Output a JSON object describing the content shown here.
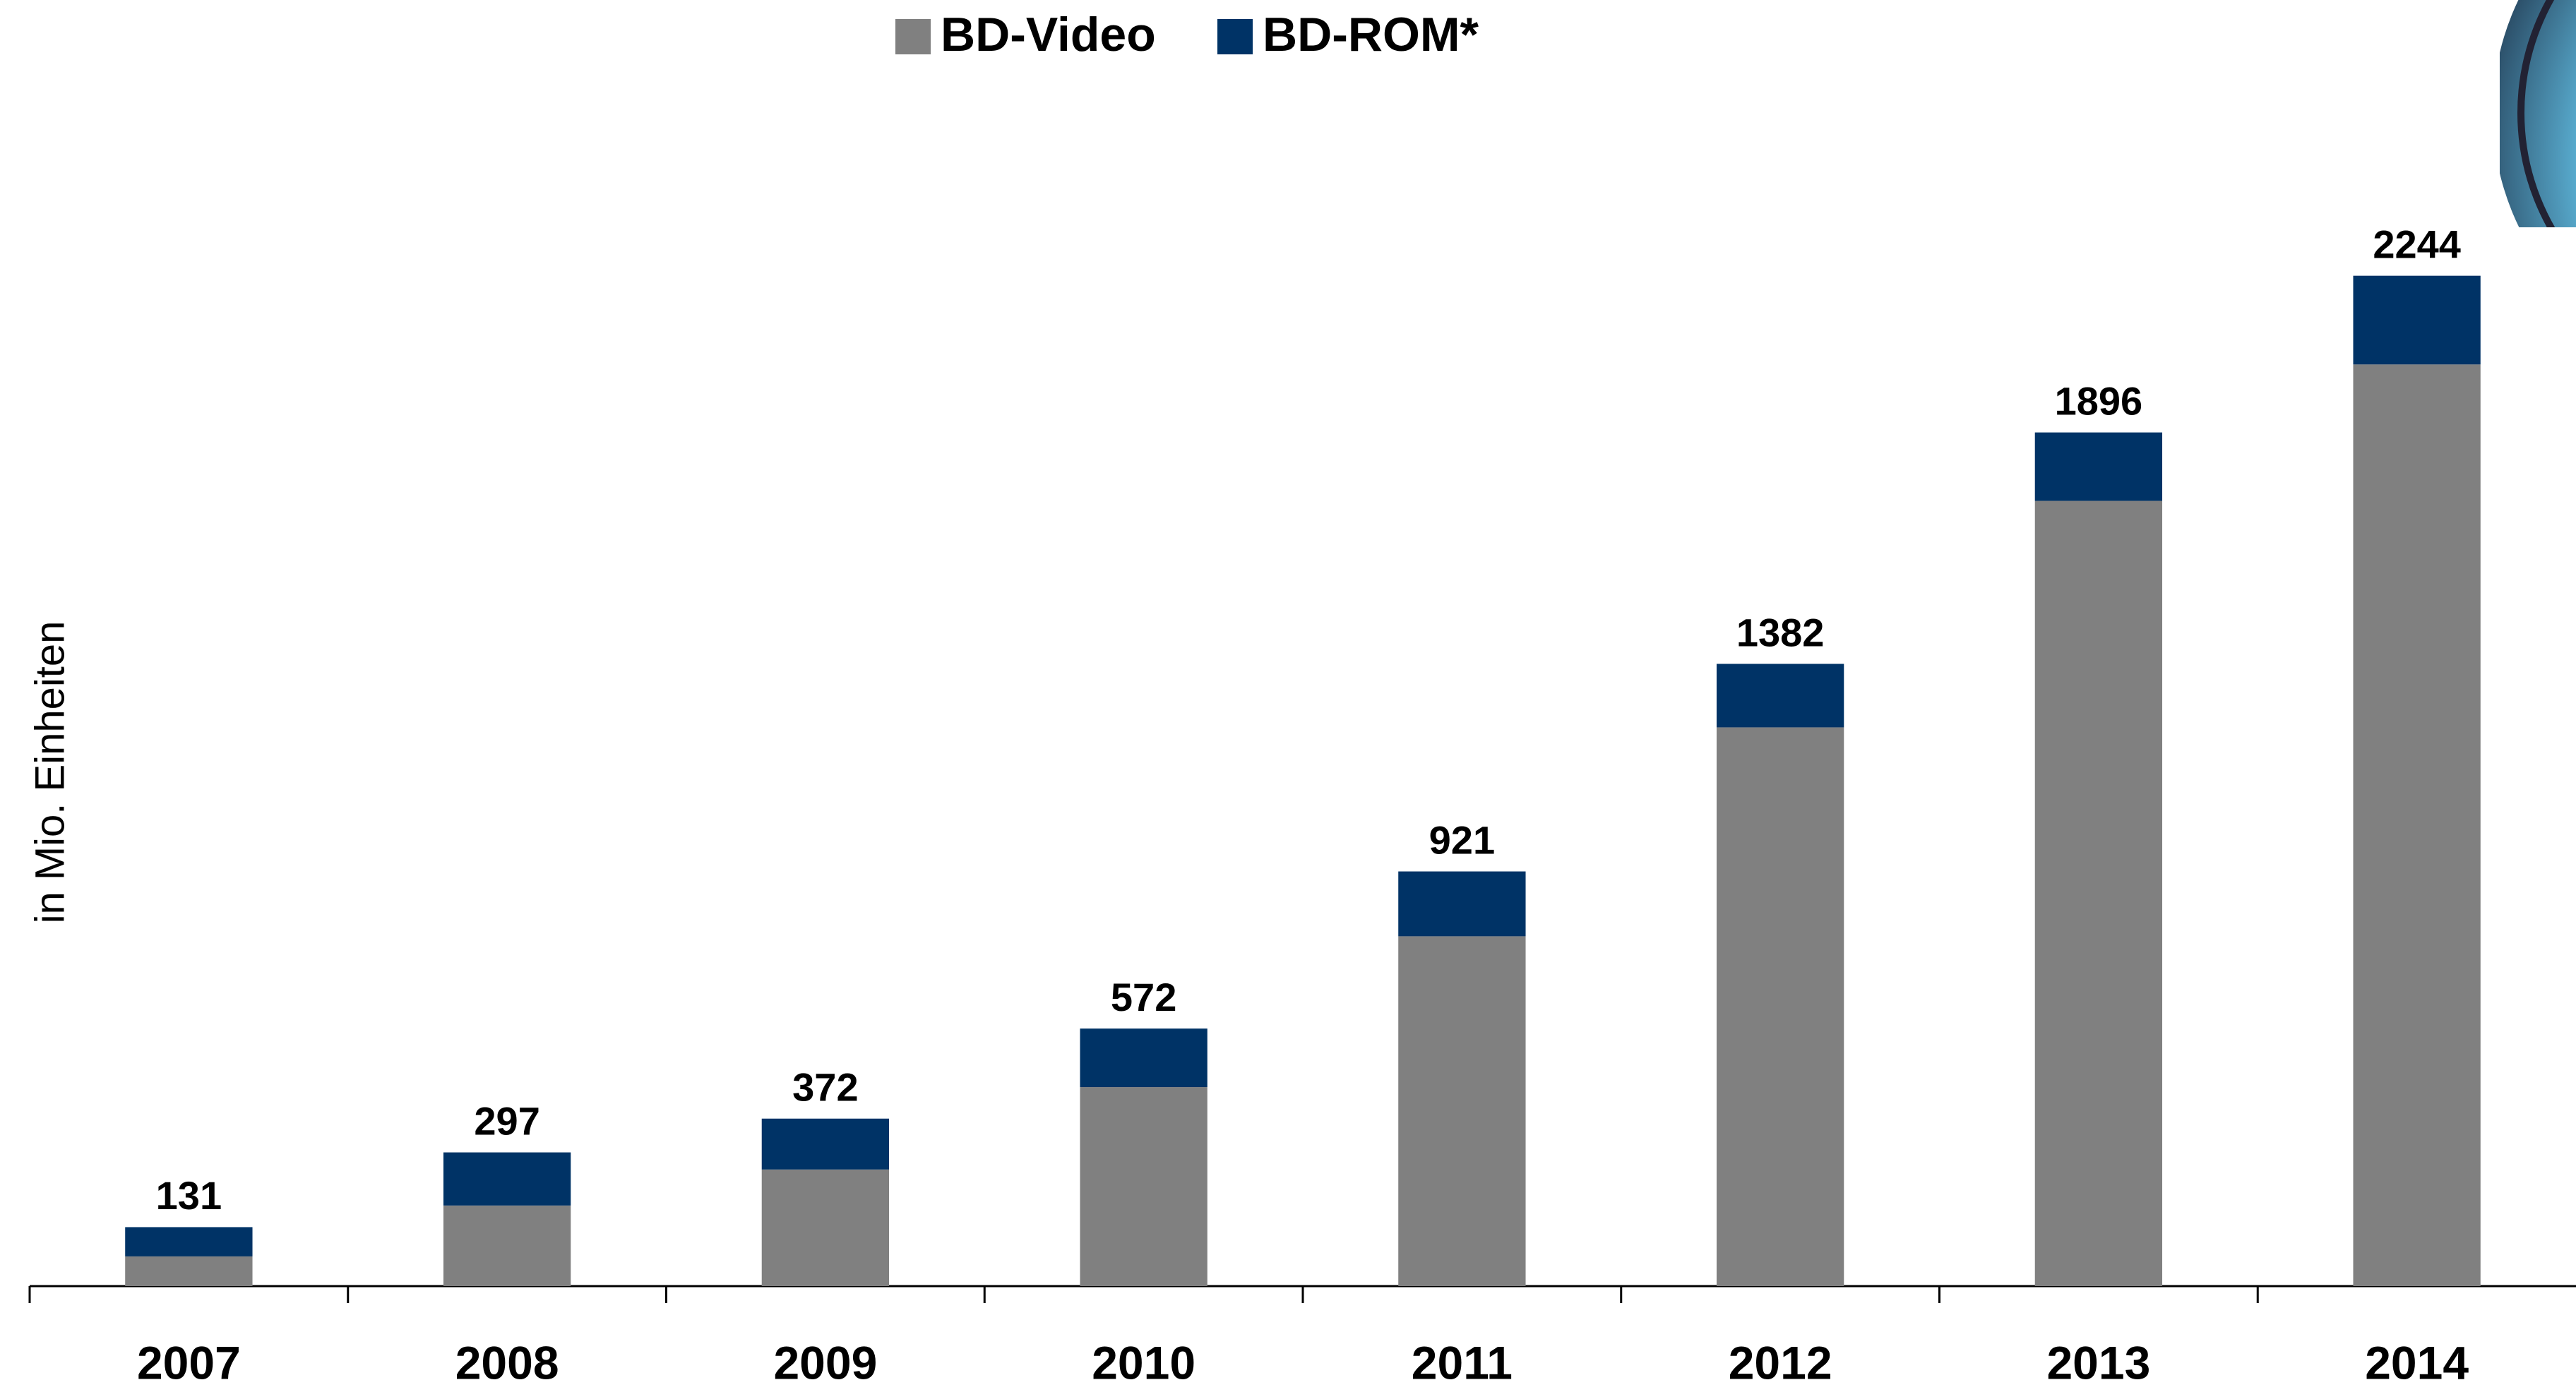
{
  "chart_data": {
    "type": "stacked-bar",
    "y_label": "in  Mio. Einheiten",
    "categories": [
      "2007",
      "2008",
      "2009",
      "2010",
      "2011",
      "2012",
      "2013",
      "2014"
    ],
    "series": [
      {
        "name": "BD-Video",
        "color": "#808080",
        "values": [
          66,
          179,
          259,
          442,
          777,
          1241,
          1744,
          2047
        ]
      },
      {
        "name": "BD-ROM*",
        "color": "#003366",
        "values": [
          65,
          118,
          113,
          130,
          144,
          141,
          152,
          197
        ]
      }
    ],
    "totals": [
      131,
      297,
      372,
      572,
      921,
      1382,
      1896,
      2244
    ],
    "ylim": [
      0,
      2800
    ],
    "legend": "top"
  }
}
